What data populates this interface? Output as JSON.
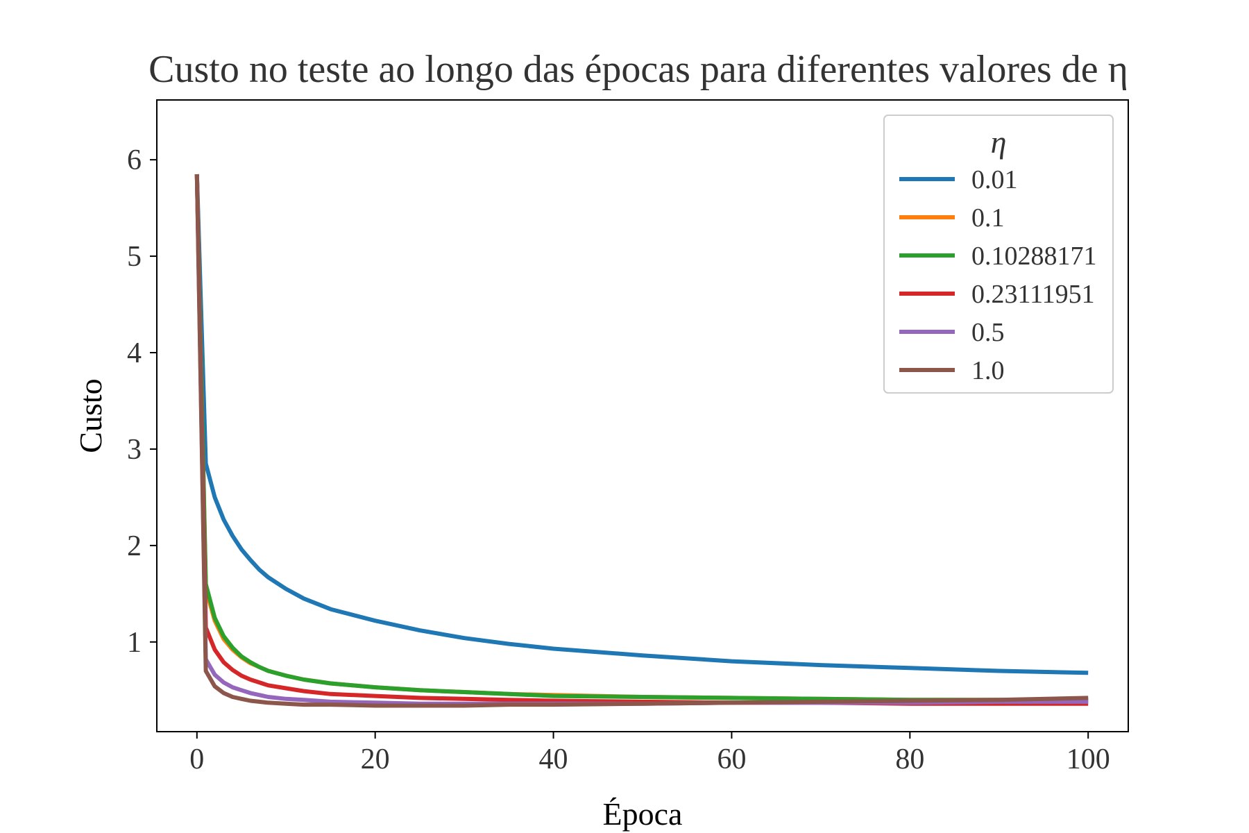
{
  "chart_data": {
    "type": "line",
    "title": "Custo no teste ao longo das épocas para diferentes valores de η",
    "xlabel": "Época",
    "ylabel": "Custo",
    "xlim": [
      -4.5,
      104.5
    ],
    "ylim": [
      0.07,
      6.62
    ],
    "xticks": [
      0,
      20,
      40,
      60,
      80,
      100
    ],
    "yticks": [
      1,
      2,
      3,
      4,
      5,
      6
    ],
    "grid": false,
    "legend": {
      "title": "η",
      "position": "top-right"
    },
    "x": [
      0,
      1,
      2,
      3,
      4,
      5,
      6,
      7,
      8,
      10,
      12,
      15,
      20,
      25,
      30,
      35,
      40,
      50,
      60,
      70,
      80,
      90,
      100
    ],
    "series": [
      {
        "name": "0.01",
        "color": "#1f77b4",
        "values": [
          5.85,
          2.85,
          2.5,
          2.27,
          2.1,
          1.96,
          1.85,
          1.75,
          1.67,
          1.55,
          1.45,
          1.34,
          1.22,
          1.12,
          1.04,
          0.98,
          0.93,
          0.86,
          0.8,
          0.76,
          0.73,
          0.7,
          0.68
        ]
      },
      {
        "name": "0.1",
        "color": "#ff7f0e",
        "values": [
          5.85,
          1.55,
          1.22,
          1.03,
          0.92,
          0.84,
          0.78,
          0.74,
          0.7,
          0.65,
          0.61,
          0.57,
          0.53,
          0.5,
          0.48,
          0.46,
          0.45,
          0.43,
          0.42,
          0.41,
          0.4,
          0.4,
          0.4
        ]
      },
      {
        "name": "0.10288171",
        "color": "#2ca02c",
        "values": [
          5.85,
          1.6,
          1.25,
          1.06,
          0.94,
          0.85,
          0.79,
          0.74,
          0.7,
          0.65,
          0.61,
          0.57,
          0.53,
          0.5,
          0.48,
          0.46,
          0.44,
          0.43,
          0.42,
          0.41,
          0.4,
          0.4,
          0.4
        ]
      },
      {
        "name": "0.23111951",
        "color": "#d62728",
        "values": [
          5.85,
          1.15,
          0.92,
          0.79,
          0.71,
          0.65,
          0.61,
          0.58,
          0.55,
          0.52,
          0.49,
          0.46,
          0.44,
          0.42,
          0.41,
          0.4,
          0.39,
          0.38,
          0.37,
          0.37,
          0.36,
          0.36,
          0.36
        ]
      },
      {
        "name": "0.5",
        "color": "#9467bd",
        "values": [
          5.85,
          0.82,
          0.66,
          0.58,
          0.53,
          0.5,
          0.47,
          0.45,
          0.43,
          0.41,
          0.4,
          0.38,
          0.37,
          0.36,
          0.36,
          0.36,
          0.36,
          0.36,
          0.37,
          0.37,
          0.37,
          0.38,
          0.38
        ]
      },
      {
        "name": "1.0",
        "color": "#8c564b",
        "values": [
          5.85,
          0.7,
          0.54,
          0.47,
          0.43,
          0.41,
          0.39,
          0.38,
          0.37,
          0.36,
          0.35,
          0.35,
          0.34,
          0.34,
          0.34,
          0.35,
          0.35,
          0.36,
          0.37,
          0.38,
          0.39,
          0.4,
          0.42
        ]
      }
    ]
  }
}
